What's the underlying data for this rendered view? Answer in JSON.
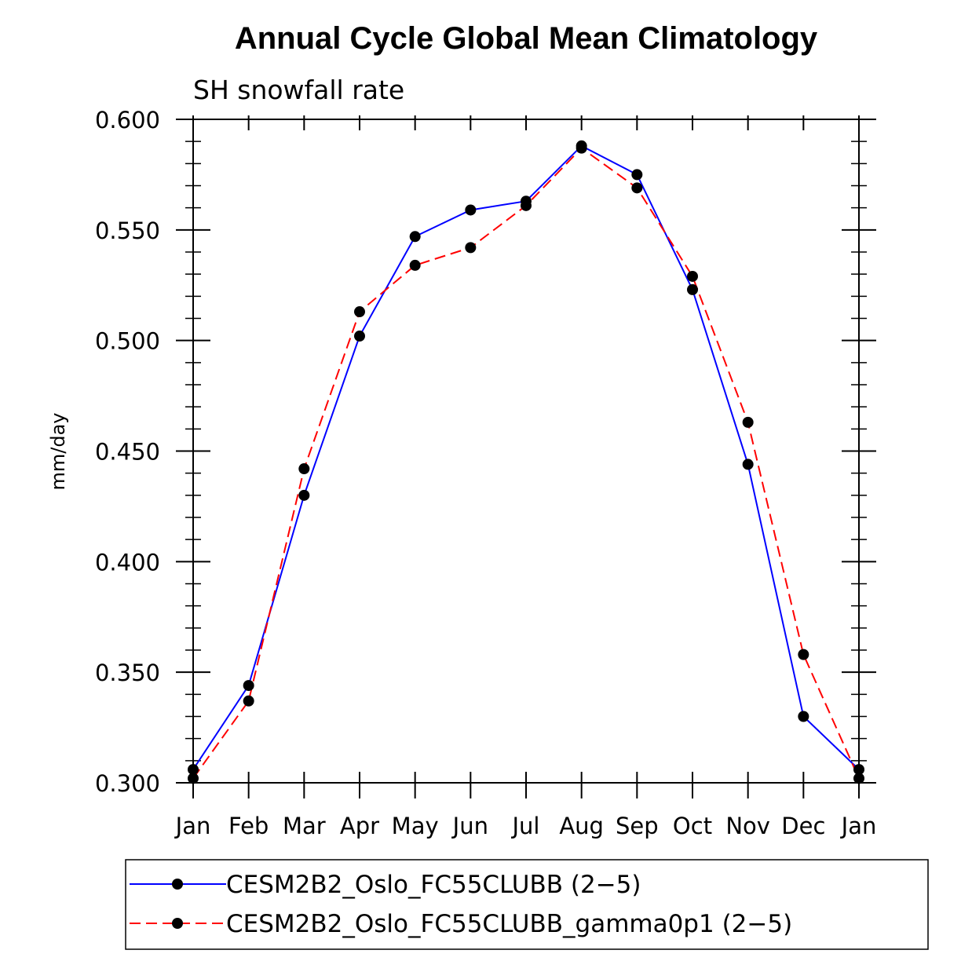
{
  "chart_data": {
    "type": "line",
    "title": "Annual Cycle Global Mean Climatology",
    "subtitle": "SH snowfall rate",
    "ylabel": "mm/day",
    "xlabel": "",
    "categories": [
      "Jan",
      "Feb",
      "Mar",
      "Apr",
      "May",
      "Jun",
      "Jul",
      "Aug",
      "Sep",
      "Oct",
      "Nov",
      "Dec",
      "Jan"
    ],
    "ylim": [
      0.3,
      0.6
    ],
    "yticks": [
      "0.300",
      "0.350",
      "0.400",
      "0.450",
      "0.500",
      "0.550",
      "0.600"
    ],
    "series": [
      {
        "name": "CESM2B2_Oslo_FC55CLUBB (2−5)",
        "color": "#0000ff",
        "dash": "solid",
        "values": [
          0.306,
          0.344,
          0.43,
          0.502,
          0.547,
          0.559,
          0.563,
          0.588,
          0.575,
          0.523,
          0.444,
          0.33,
          0.306
        ]
      },
      {
        "name": "CESM2B2_Oslo_FC55CLUBB_gamma0p1 (2−5)",
        "color": "#ff0000",
        "dash": "dashed",
        "values": [
          0.302,
          0.337,
          0.442,
          0.513,
          0.534,
          0.542,
          0.561,
          0.587,
          0.569,
          0.529,
          0.463,
          0.358,
          0.302
        ]
      }
    ],
    "legend_position": "bottom",
    "marker_color": "#000000"
  }
}
